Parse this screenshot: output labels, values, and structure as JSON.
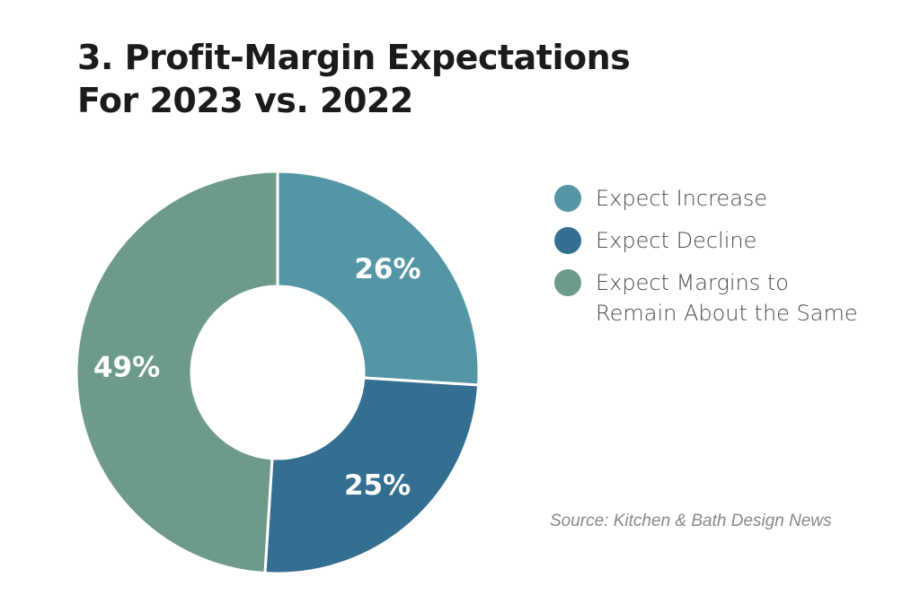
{
  "chart_data": {
    "type": "pie",
    "title_lines": [
      "3. Profit-Margin Expectations",
      "For 2023 vs. 2022"
    ],
    "categories": [
      "Expect Increase",
      "Expect Decline",
      "Expect Margins to Remain About the Same"
    ],
    "values": [
      26,
      25,
      49
    ],
    "value_labels": [
      "26%",
      "25%",
      "49%"
    ],
    "colors": [
      "#5596a6",
      "#346f92",
      "#6e9b89"
    ],
    "donut": true,
    "legend_position": "right",
    "source": "Source: Kitchen & Bath Design News"
  },
  "legend": {
    "items": [
      {
        "label": "Expect Increase",
        "color": "#5596a6"
      },
      {
        "label": "Expect Decline",
        "color": "#346f92"
      },
      {
        "label": "Expect Margins to\nRemain About the Same",
        "color": "#6e9b89"
      }
    ]
  }
}
